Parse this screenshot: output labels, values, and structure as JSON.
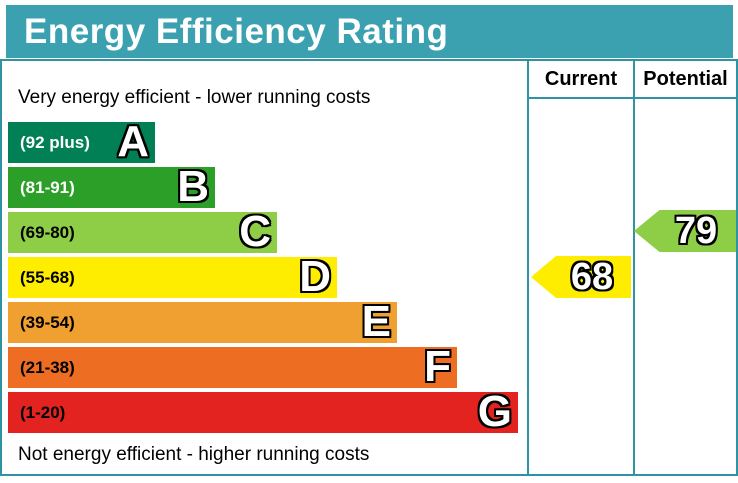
{
  "title": "Energy Efficiency Rating",
  "columns": {
    "current": "Current",
    "potential": "Potential"
  },
  "notes": {
    "top": "Very energy efficient - lower running costs",
    "bottom": "Not energy efficient - higher running costs"
  },
  "colors": {
    "header_bg": "#3ba1b1",
    "header_text": "#ffffff",
    "border": "#2e93a3"
  },
  "chart_data": {
    "type": "bar",
    "title": "Energy Efficiency Rating",
    "scale": {
      "min": 1,
      "max": 100
    },
    "bands": [
      {
        "letter": "A",
        "range": "(92 plus)",
        "min": 92,
        "max": 100,
        "color": "#008054",
        "label_color": "#ffffff"
      },
      {
        "letter": "B",
        "range": "(81-91)",
        "min": 81,
        "max": 91,
        "color": "#2c9f29",
        "label_color": "#ffffff"
      },
      {
        "letter": "C",
        "range": "(69-80)",
        "min": 69,
        "max": 80,
        "color": "#8dce46",
        "label_color": "#000000"
      },
      {
        "letter": "D",
        "range": "(55-68)",
        "min": 55,
        "max": 68,
        "color": "#ffed00",
        "label_color": "#000000"
      },
      {
        "letter": "E",
        "range": "(39-54)",
        "min": 39,
        "max": 54,
        "color": "#f0a030",
        "label_color": "#000000"
      },
      {
        "letter": "F",
        "range": "(21-38)",
        "min": 21,
        "max": 38,
        "color": "#ed6d23",
        "label_color": "#000000"
      },
      {
        "letter": "G",
        "range": "(1-20)",
        "min": 1,
        "max": 20,
        "color": "#e2231f",
        "label_color": "#000000"
      }
    ],
    "current": {
      "value": 68,
      "band": "D",
      "color": "#ffed00"
    },
    "potential": {
      "value": 79,
      "band": "C",
      "color": "#8dce46"
    }
  }
}
